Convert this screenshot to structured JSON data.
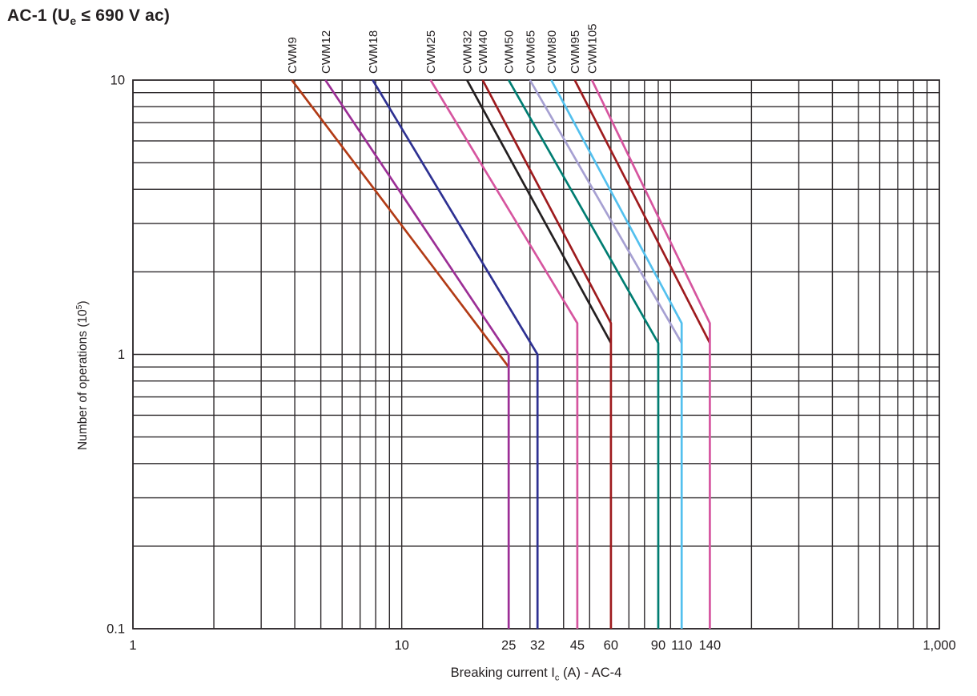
{
  "header": {
    "title_prefix": "AC-1 (U",
    "title_sub": "e",
    "title_suffix": " ≤ 690 V ac)"
  },
  "chart_data": {
    "type": "line",
    "title": "AC-1 (Ue ≤ 690 V ac)",
    "x_axis": {
      "label_prefix": "Breaking current I",
      "label_sub": "c",
      "label_suffix": " (A) - AC-4",
      "scale": "log",
      "range": [
        1,
        1000
      ],
      "tick_labels": [
        {
          "value": 1,
          "label": "1"
        },
        {
          "value": 10,
          "label": "10"
        },
        {
          "value": 25,
          "label": "25"
        },
        {
          "value": 32,
          "label": "32"
        },
        {
          "value": 45,
          "label": "45"
        },
        {
          "value": 60,
          "label": "60"
        },
        {
          "value": 90,
          "label": "90"
        },
        {
          "value": 110,
          "label": "110"
        },
        {
          "value": 140,
          "label": "140"
        },
        {
          "value": 1000,
          "label": "1,000"
        }
      ]
    },
    "y_axis": {
      "label_prefix": "Number of operations (10",
      "label_sup": "5",
      "label_suffix": ")",
      "scale": "log",
      "range": [
        0.1,
        10
      ],
      "tick_labels": [
        {
          "value": 10,
          "label": "10"
        },
        {
          "value": 1,
          "label": "1"
        },
        {
          "value": 0.1,
          "label": "0.1"
        }
      ]
    },
    "grid": {
      "show": true,
      "color": "#2d292b"
    },
    "series": [
      {
        "name": "CWM9",
        "color": "#b23b16",
        "points": [
          [
            3.9,
            10
          ],
          [
            25,
            0.9
          ]
        ]
      },
      {
        "name": "CWM12",
        "color": "#9c2f96",
        "points": [
          [
            5.2,
            10
          ],
          [
            25,
            1.0
          ],
          [
            25,
            0.1
          ]
        ]
      },
      {
        "name": "CWM18",
        "color": "#2e3192",
        "points": [
          [
            7.8,
            10
          ],
          [
            32,
            1.0
          ],
          [
            32,
            0.1
          ]
        ]
      },
      {
        "name": "CWM25",
        "color": "#d6559f",
        "points": [
          [
            12.8,
            10
          ],
          [
            45,
            1.3
          ],
          [
            45,
            0.1
          ]
        ]
      },
      {
        "name": "CWM32",
        "color": "#231f20",
        "points": [
          [
            17.5,
            10
          ],
          [
            60,
            1.1
          ]
        ]
      },
      {
        "name": "CWM40",
        "color": "#9e1b1e",
        "points": [
          [
            20,
            10
          ],
          [
            60,
            1.3
          ],
          [
            60,
            0.1
          ]
        ]
      },
      {
        "name": "CWM50",
        "color": "#007d72",
        "points": [
          [
            25,
            10
          ],
          [
            90,
            1.1
          ],
          [
            90,
            0.1
          ]
        ]
      },
      {
        "name": "CWM65",
        "color": "#a6a0d2",
        "points": [
          [
            30,
            10
          ],
          [
            110,
            1.1
          ]
        ]
      },
      {
        "name": "CWM80",
        "color": "#53c0ee",
        "points": [
          [
            36,
            10
          ],
          [
            110,
            1.3
          ],
          [
            110,
            0.1
          ]
        ]
      },
      {
        "name": "CWM95",
        "color": "#9e1b1e",
        "points": [
          [
            44,
            10
          ],
          [
            140,
            1.1
          ]
        ]
      },
      {
        "name": "CWM105",
        "color": "#d6559f",
        "points": [
          [
            51,
            10
          ],
          [
            140,
            1.3
          ],
          [
            140,
            0.1
          ]
        ]
      }
    ]
  }
}
